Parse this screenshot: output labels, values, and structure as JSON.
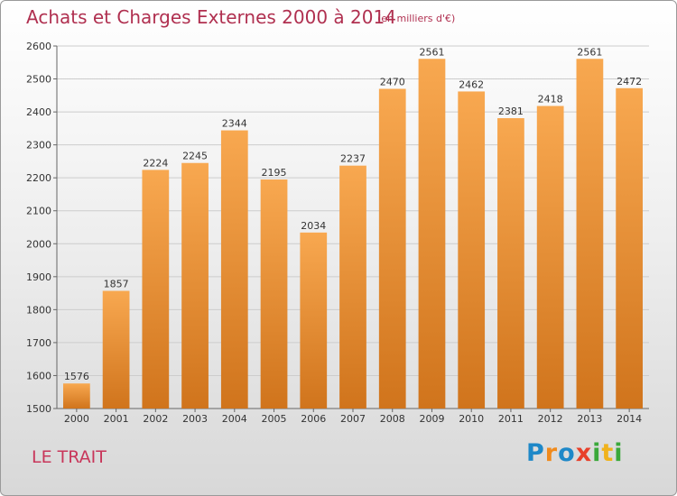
{
  "header": {
    "title": "Achats et Charges Externes 2000 à 2014",
    "subtitle": "(en milliers d'€)"
  },
  "footer": {
    "location": "LE TRAIT",
    "logo_text": "Proxiti"
  },
  "colors": {
    "bar_light": "#f8a850",
    "bar_dark": "#d0741c",
    "title": "#b03050",
    "grid": "#cccccc"
  },
  "chart_data": {
    "type": "bar",
    "title": "Achats et Charges Externes 2000 à 2014",
    "subtitle": "(en milliers d'€)",
    "categories": [
      "2000",
      "2001",
      "2002",
      "2003",
      "2004",
      "2005",
      "2006",
      "2007",
      "2008",
      "2009",
      "2010",
      "2011",
      "2012",
      "2013",
      "2014"
    ],
    "values": [
      1576,
      1857,
      2224,
      2245,
      2344,
      2195,
      2034,
      2237,
      2470,
      2561,
      2462,
      2381,
      2418,
      2561,
      2472
    ],
    "ylim": [
      1500,
      2600
    ],
    "yticks": [
      1500,
      1600,
      1700,
      1800,
      1900,
      2000,
      2100,
      2200,
      2300,
      2400,
      2500,
      2600
    ],
    "xlabel": "",
    "ylabel": "",
    "grid": true,
    "data_labels": true,
    "legend": "none"
  }
}
